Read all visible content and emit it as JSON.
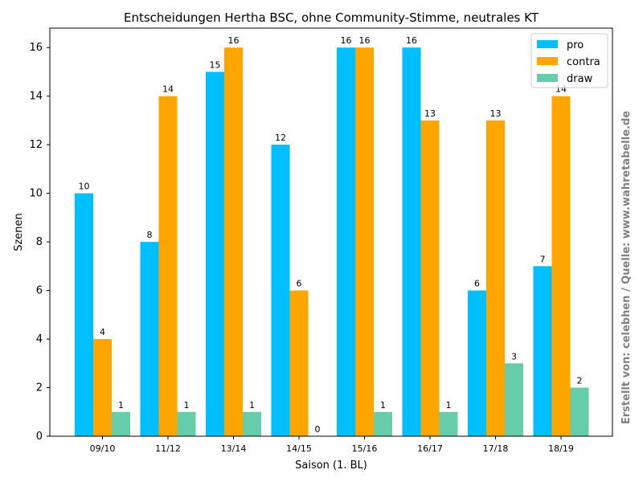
{
  "chart_data": {
    "type": "bar",
    "title": "Entscheidungen Hertha BSC, ohne Community-Stimme, neutrales KT",
    "xlabel": "Saison (1. BL)",
    "ylabel": "Szenen",
    "categories": [
      "09/10",
      "11/12",
      "13/14",
      "14/15",
      "15/16",
      "16/17",
      "17/18",
      "18/19"
    ],
    "series": [
      {
        "name": "pro",
        "color": "#00bfff",
        "values": [
          10,
          8,
          15,
          12,
          16,
          16,
          6,
          7
        ]
      },
      {
        "name": "contra",
        "color": "#ffa500",
        "values": [
          4,
          14,
          16,
          6,
          16,
          13,
          13,
          14
        ]
      },
      {
        "name": "draw",
        "color": "#66cdaa",
        "values": [
          1,
          1,
          1,
          0,
          1,
          1,
          3,
          2
        ]
      }
    ],
    "ylim": [
      0,
      16.8
    ],
    "yticks": [
      0,
      2,
      4,
      6,
      8,
      10,
      12,
      14,
      16
    ],
    "grid": false,
    "legend_position": "top-right"
  },
  "credit": "Erstellt von: celebhen / Quelle: www.wahretabelle.de"
}
